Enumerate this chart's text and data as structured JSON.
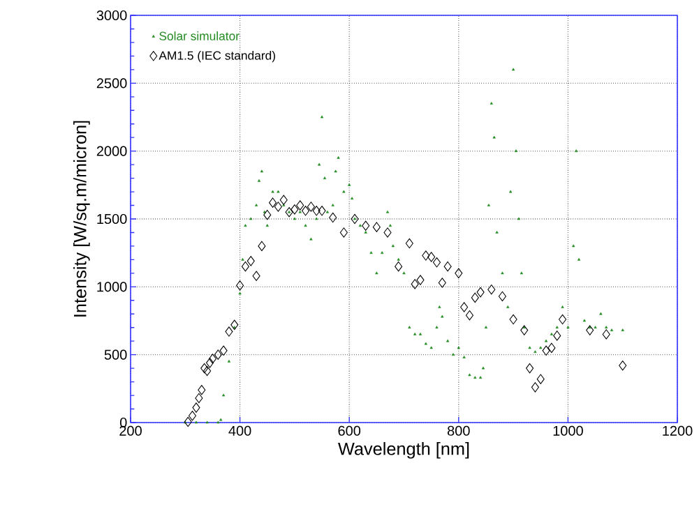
{
  "chart_data": {
    "type": "scatter",
    "xlabel": "Wavelength [nm]",
    "ylabel": "Intensity  [W/sq.m/micron]",
    "xlim": [
      200,
      1200
    ],
    "ylim": [
      0,
      3000
    ],
    "xticks": [
      200,
      400,
      600,
      800,
      1000,
      1200
    ],
    "yticks": [
      0,
      500,
      1000,
      1500,
      2000,
      2500,
      3000
    ],
    "grid": true,
    "legend": "top left",
    "series": [
      {
        "name": "Solar simulator",
        "color": "#228b22",
        "marker": "triangle",
        "x": [
          300,
          320,
          340,
          360,
          365,
          370,
          380,
          390,
          400,
          405,
          410,
          420,
          430,
          435,
          440,
          445,
          450,
          460,
          470,
          480,
          490,
          500,
          510,
          520,
          530,
          540,
          545,
          550,
          555,
          560,
          570,
          575,
          580,
          590,
          600,
          605,
          610,
          620,
          630,
          640,
          650,
          660,
          670,
          675,
          680,
          690,
          700,
          710,
          720,
          730,
          740,
          750,
          760,
          765,
          770,
          780,
          790,
          800,
          810,
          820,
          830,
          840,
          845,
          850,
          855,
          860,
          865,
          870,
          880,
          890,
          895,
          900,
          905,
          910,
          915,
          920,
          930,
          940,
          950,
          960,
          970,
          980,
          990,
          1000,
          1010,
          1015,
          1020,
          1030,
          1040,
          1050,
          1060,
          1070,
          1080,
          1100
        ],
        "values": [
          0,
          0,
          0,
          0,
          20,
          200,
          450,
          700,
          950,
          1200,
          1450,
          1500,
          1600,
          1780,
          1850,
          1550,
          1450,
          1700,
          1700,
          1600,
          1550,
          1500,
          1550,
          1450,
          1350,
          1500,
          1900,
          2250,
          1800,
          1550,
          1600,
          1850,
          1950,
          1700,
          1750,
          1650,
          1500,
          1450,
          1400,
          1250,
          1100,
          1250,
          1550,
          1450,
          1300,
          1200,
          1100,
          700,
          650,
          650,
          580,
          550,
          700,
          850,
          780,
          600,
          500,
          550,
          480,
          350,
          330,
          330,
          400,
          700,
          1600,
          2350,
          2100,
          1400,
          1100,
          850,
          1700,
          2600,
          2000,
          1500,
          1100,
          700,
          550,
          520,
          550,
          600,
          650,
          700,
          850,
          700,
          1300,
          2000,
          1200,
          750,
          700,
          700,
          800,
          700,
          680,
          680
        ]
      },
      {
        "name": "AM1.5 (IEC standard)",
        "color": "#000000",
        "marker": "diamond",
        "x": [
          305,
          313,
          320,
          325,
          330,
          335,
          340,
          345,
          350,
          360,
          370,
          380,
          390,
          400,
          410,
          420,
          430,
          440,
          450,
          460,
          470,
          480,
          490,
          500,
          510,
          520,
          530,
          540,
          550,
          570,
          590,
          610,
          630,
          650,
          670,
          690,
          710,
          720,
          730,
          740,
          750,
          760,
          770,
          780,
          800,
          810,
          820,
          830,
          840,
          860,
          880,
          900,
          920,
          930,
          940,
          950,
          960,
          970,
          980,
          990,
          1040,
          1070,
          1100
        ],
        "values": [
          5,
          50,
          110,
          180,
          240,
          400,
          380,
          440,
          470,
          500,
          530,
          670,
          720,
          1010,
          1150,
          1190,
          1080,
          1300,
          1530,
          1620,
          1590,
          1640,
          1550,
          1570,
          1600,
          1560,
          1590,
          1560,
          1560,
          1510,
          1400,
          1500,
          1450,
          1440,
          1400,
          1150,
          1320,
          1020,
          1050,
          1230,
          1220,
          1180,
          1030,
          1150,
          1100,
          850,
          790,
          920,
          960,
          980,
          930,
          760,
          680,
          400,
          260,
          320,
          530,
          550,
          640,
          760,
          680,
          650,
          420
        ]
      }
    ]
  }
}
